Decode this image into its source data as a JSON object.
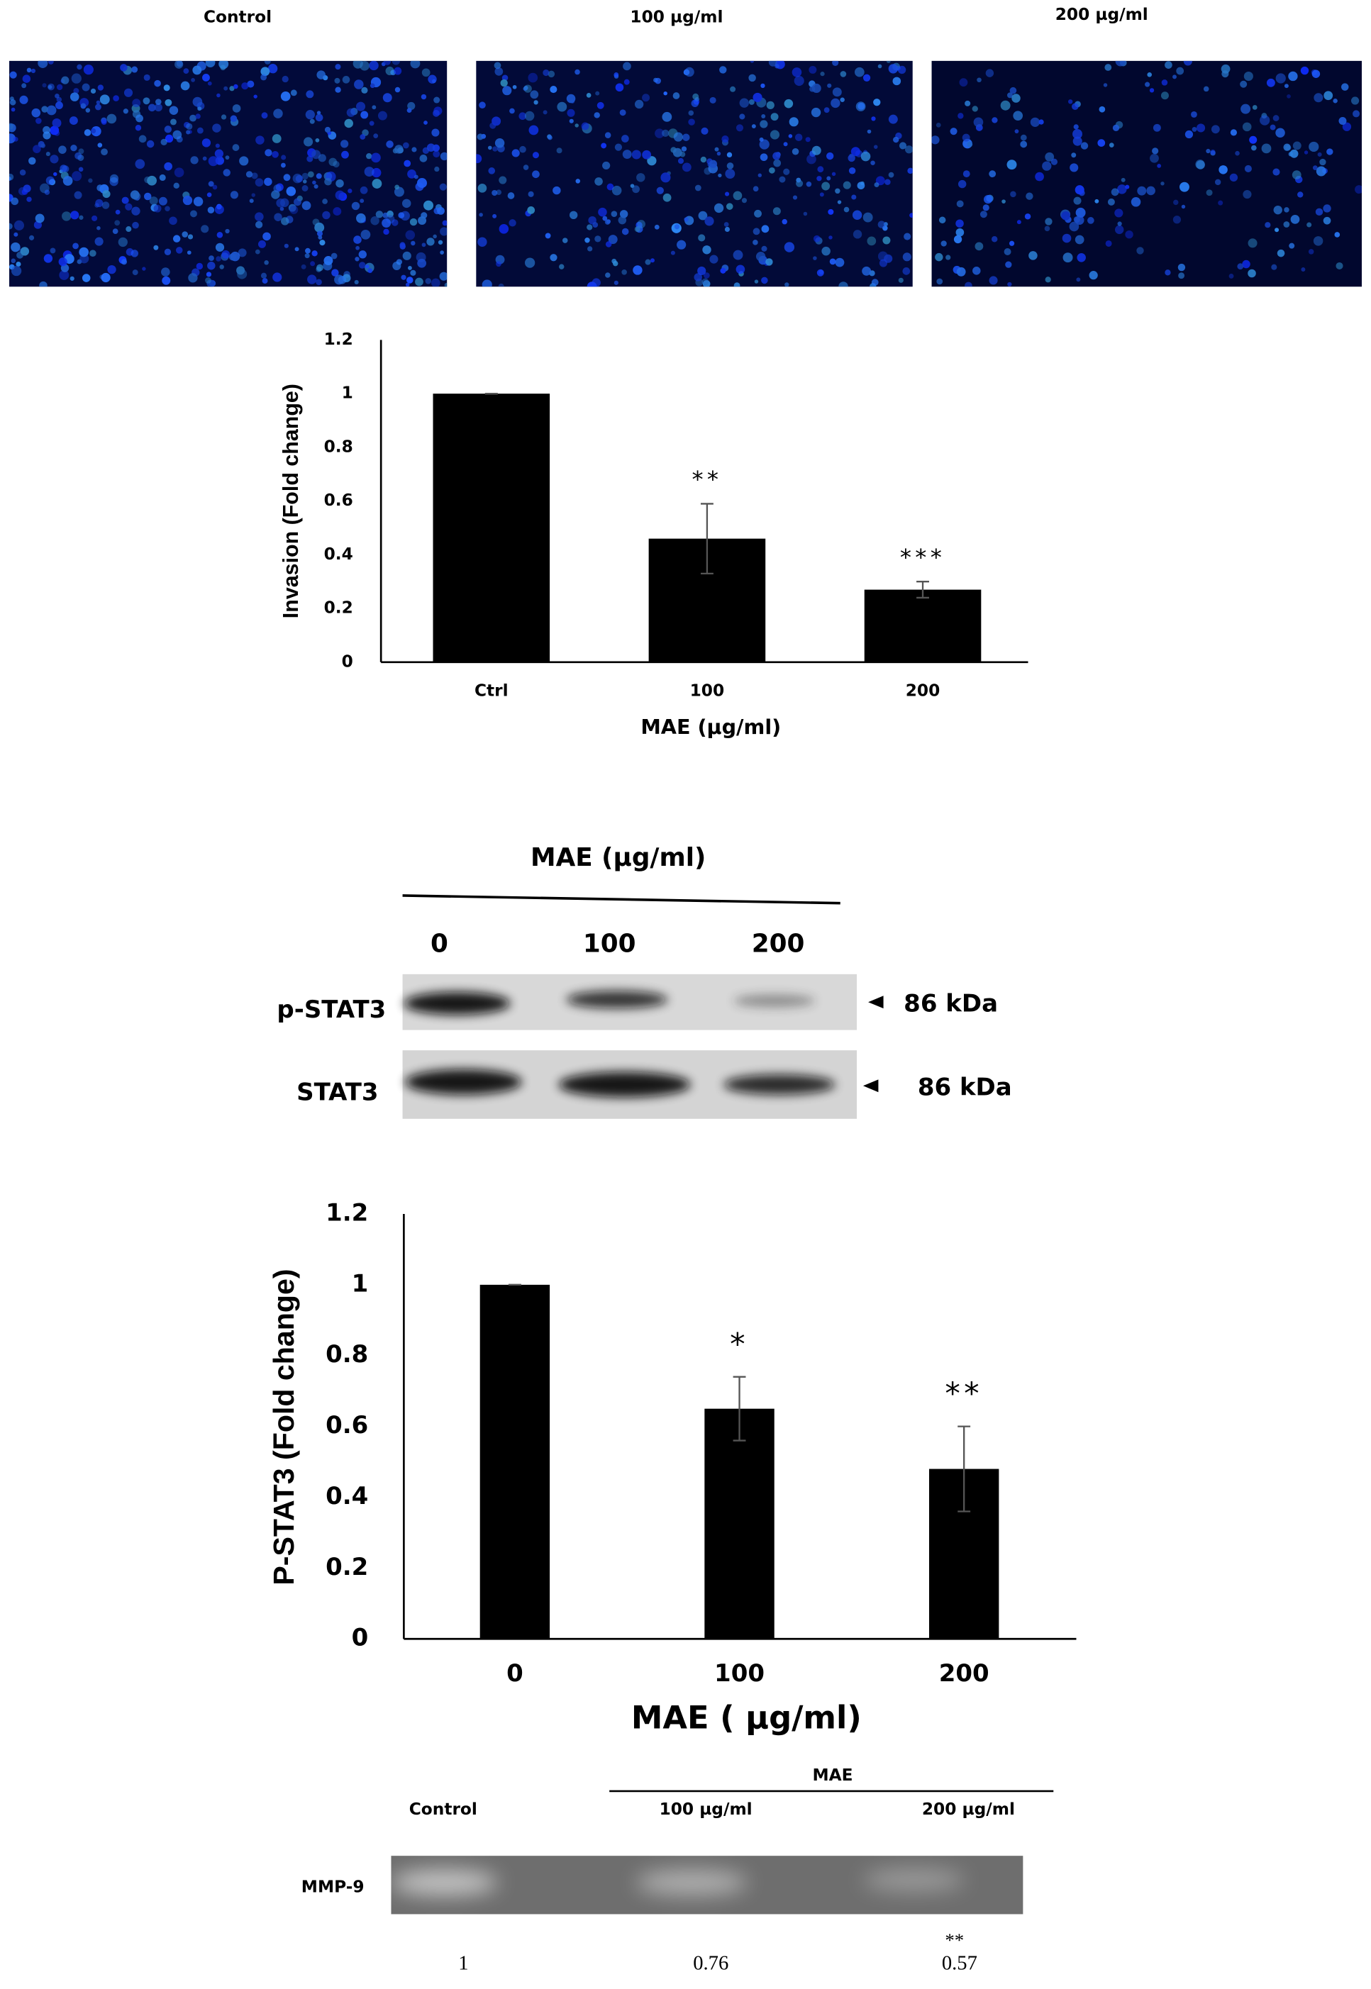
{
  "panels": {
    "labels": [
      "Control",
      "100 µg/ml",
      "200 µg/ml"
    ]
  },
  "chart_data": [
    {
      "type": "bar",
      "ylabel": "Invasion (Fold change)",
      "xlabel": "MAE (µg/ml)",
      "categories": [
        "Ctrl",
        "100",
        "200"
      ],
      "values": [
        1,
        0.46,
        0.27
      ],
      "errors": [
        0,
        0.13,
        0.03
      ],
      "annotations": [
        null,
        "**",
        "***"
      ],
      "color": "#000000",
      "ylim": [
        0,
        1.2
      ],
      "yticks": [
        0,
        0.2,
        0.4,
        0.6,
        0.8,
        1,
        1.2
      ],
      "grid": false
    },
    {
      "type": "bar",
      "ylabel": "P-STAT3  (Fold change)",
      "xlabel": "MAE ( µg/ml)",
      "categories": [
        "0",
        "100",
        "200"
      ],
      "values": [
        1,
        0.65,
        0.48
      ],
      "errors": [
        0,
        0.09,
        0.12
      ],
      "annotations": [
        null,
        "*",
        "**"
      ],
      "color": "#000000",
      "ylim": [
        0,
        1.2
      ],
      "yticks": [
        0,
        0.2,
        0.4,
        0.6,
        0.8,
        1,
        1.2
      ],
      "grid": false
    }
  ],
  "blot": {
    "title": "MAE (µg/ml)",
    "lanes": [
      "0",
      "100",
      "200"
    ],
    "rows": [
      {
        "label": "p-STAT3",
        "size": "86 kDa"
      },
      {
        "label": "STAT3",
        "size": "86 kDa"
      }
    ]
  },
  "zymography": {
    "group": "MAE",
    "lanes": [
      "Control",
      "100 µg/ml",
      "200 µg/ml"
    ],
    "row": "MMP-9",
    "values": [
      1,
      0.76,
      0.57
    ],
    "significance": "**"
  }
}
